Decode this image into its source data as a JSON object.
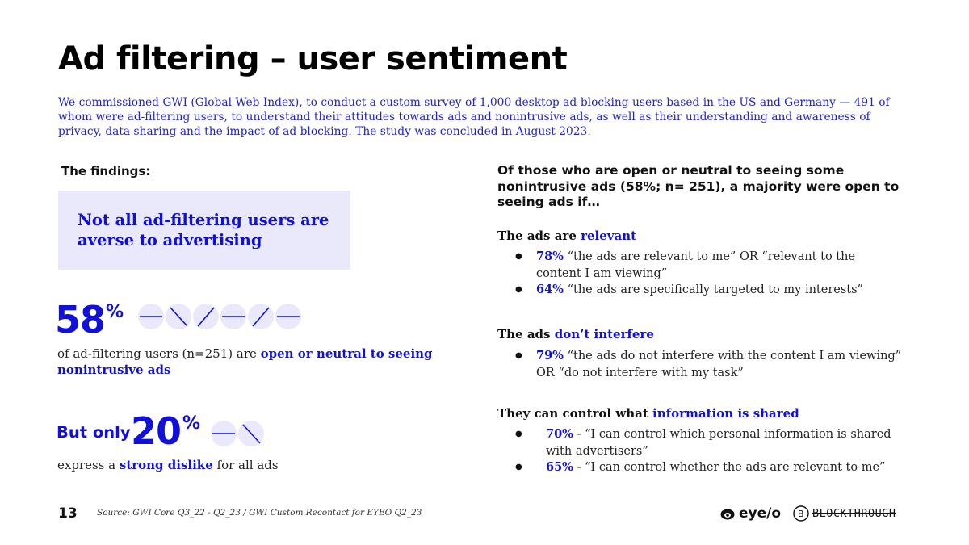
{
  "title": "Ad filtering – user sentiment",
  "intro": "We commissioned GWI (Global Web Index), to conduct a custom survey of 1,000 desktop ad-blocking users based in the US and Germany — 491 of whom were ad-filtering users, to understand their attitudes towards ads and nonintrusive ads, as well as their understanding and awareness of privacy, data sharing and the impact of ad blocking. The study was concluded in August 2023.",
  "findings_label": "The findings:",
  "callout": "Not all ad-filtering users are averse to advertising",
  "stat1": {
    "value": "58",
    "suffix": "%",
    "desc_pre": "of ad-filtering users (n=251) are ",
    "desc_bold": "open or neutral to seeing nonintrusive ads"
  },
  "stat2": {
    "prefix": "But only",
    "value": "20",
    "suffix": "%",
    "desc_pre": "express a ",
    "desc_bold": "strong dislike",
    "desc_post": " for all ads"
  },
  "right_heading": "Of those who are open or neutral to seeing some nonintrusive ads (58%; n= 251), a majority were open to seeing ads if…",
  "sections": [
    {
      "head_pre": "The ads are ",
      "head_hl": "relevant",
      "items": [
        {
          "pct": "78%",
          "text": " “the ads are relevant to me” OR “relevant to the content I am viewing”"
        },
        {
          "pct": "64%",
          "text": " “the ads are specifically targeted to my interests”"
        }
      ]
    },
    {
      "head_pre": "The ads ",
      "head_hl": "don’t interfere",
      "items": [
        {
          "pct": "79%",
          "text": " “the ads do not interfere with the content I am viewing” OR “do not interfere with my task”"
        }
      ]
    },
    {
      "head_pre": "They can control what ",
      "head_hl": "information is shared",
      "items": [
        {
          "pct": "70%",
          "text": " - “I can control which personal information is shared with advertisers”"
        },
        {
          "pct": "65%",
          "text": " - “I can control whether the ads are relevant to me”"
        }
      ]
    }
  ],
  "footer": {
    "page": "13",
    "source": "Source: GWI Core Q3_22 - Q2_23 / GWI Custom Recontact for EYEO Q2_23",
    "logo1": "eye/o",
    "logo2": "BLOCKTHROUGH"
  },
  "icons": [
    "dash-icon",
    "backslash-icon",
    "slash-icon"
  ],
  "colors": {
    "accent": "#1010d8",
    "callout_bg": "#e9e9fb"
  }
}
